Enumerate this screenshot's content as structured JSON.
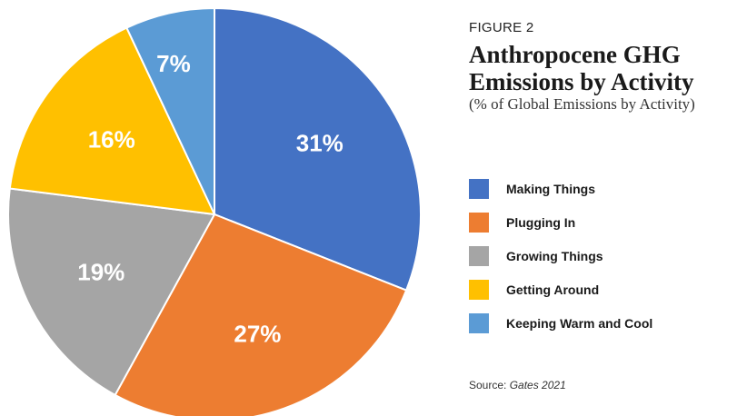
{
  "figure": {
    "tag": "FIGURE 2",
    "title_line1": "Anthropocene GHG",
    "title_line2": "Emissions by Activity",
    "subtitle": "(% of Global Emissions by Activity)",
    "source_prefix": "Source: ",
    "source_name": "Gates 2021"
  },
  "chart_data": {
    "type": "pie",
    "title": "Anthropocene GHG Emissions by Activity",
    "subtitle": "(% of Global Emissions by Activity)",
    "legend_position": "right",
    "start": "12 o'clock, clockwise",
    "slices": [
      {
        "name": "Making Things",
        "value": 31,
        "label": "31%",
        "color": "#4472C4"
      },
      {
        "name": "Plugging In",
        "value": 27,
        "label": "27%",
        "color": "#ED7D31"
      },
      {
        "name": "Growing Things",
        "value": 19,
        "label": "19%",
        "color": "#A5A5A5"
      },
      {
        "name": "Getting Around",
        "value": 16,
        "label": "16%",
        "color": "#FFC000"
      },
      {
        "name": "Keeping Warm and Cool",
        "value": 7,
        "label": "7%",
        "color": "#5B9BD5"
      }
    ]
  },
  "legend": [
    {
      "label": "Making Things",
      "color": "#4472C4"
    },
    {
      "label": "Plugging In",
      "color": "#ED7D31"
    },
    {
      "label": "Growing Things",
      "color": "#A5A5A5"
    },
    {
      "label": "Getting Around",
      "color": "#FFC000"
    },
    {
      "label": "Keeping Warm and Cool",
      "color": "#5B9BD5"
    }
  ]
}
